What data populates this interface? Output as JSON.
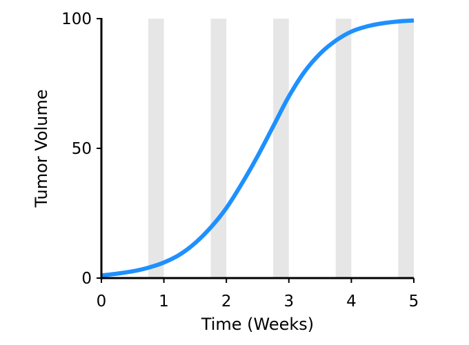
{
  "chart_data": {
    "type": "line",
    "title": "",
    "xlabel": "Time (Weeks)",
    "ylabel": "Tumor Volume",
    "xlim": [
      0,
      5
    ],
    "ylim": [
      0,
      100
    ],
    "x_ticks": [
      0,
      1,
      2,
      3,
      4,
      5
    ],
    "x_tick_labels": [
      "0",
      "1",
      "2",
      "3",
      "4",
      "5"
    ],
    "y_ticks": [
      0,
      50,
      100
    ],
    "y_tick_labels": [
      "0",
      "50",
      "100"
    ],
    "grid": false,
    "legend": "none",
    "shaded_bands_x": [
      [
        0.75,
        1.0
      ],
      [
        1.75,
        2.0
      ],
      [
        2.75,
        3.0
      ],
      [
        3.75,
        4.0
      ],
      [
        4.75,
        5.0
      ]
    ],
    "series": [
      {
        "color": "#1e90ff",
        "x": [
          0,
          0.25,
          0.5,
          0.75,
          1.0,
          1.25,
          1.5,
          1.75,
          2.0,
          2.25,
          2.5,
          2.75,
          3.0,
          3.25,
          3.5,
          3.75,
          4.0,
          4.25,
          4.5,
          4.75,
          5.0
        ],
        "y": [
          1.0,
          1.7,
          2.6,
          4.0,
          6.0,
          9.0,
          13.5,
          19.5,
          27.0,
          36.5,
          47.0,
          58.5,
          70.0,
          79.5,
          86.5,
          91.5,
          95.0,
          97.0,
          98.2,
          98.9,
          99.3
        ]
      }
    ],
    "band_color": "#e6e6e6",
    "axis_color": "#000000"
  }
}
